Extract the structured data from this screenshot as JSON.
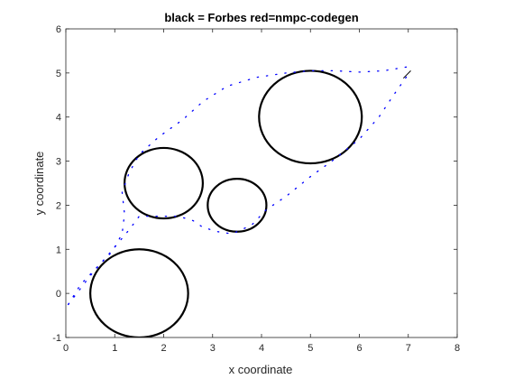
{
  "chart_data": {
    "type": "scatter",
    "title": "black = Forbes red=nmpc-codegen",
    "xlabel": "x coordinate",
    "ylabel": "y coordinate",
    "xlim": [
      0,
      8
    ],
    "ylim": [
      -1,
      6
    ],
    "xticks": [
      0,
      1,
      2,
      3,
      4,
      5,
      6,
      7,
      8
    ],
    "yticks": [
      -1,
      0,
      1,
      2,
      3,
      4,
      5,
      6
    ],
    "grid": false,
    "colors": {
      "axes": "#262626",
      "obstacle": "#000000",
      "dotted_path": "#0000ff",
      "solid_path": "#000000"
    },
    "obstacles": [
      {
        "center": [
          1.5,
          0.0
        ],
        "radius": 1.0
      },
      {
        "center": [
          2.0,
          2.5
        ],
        "radius": 0.8
      },
      {
        "center": [
          3.5,
          2.0
        ],
        "radius": 0.6
      },
      {
        "center": [
          5.0,
          4.0
        ],
        "radius": 1.05
      }
    ],
    "series": [
      {
        "style": "dotted-blue",
        "points": [
          [
            0.05,
            -0.25
          ],
          [
            0.3,
            0.2
          ],
          [
            0.6,
            0.55
          ],
          [
            0.95,
            0.95
          ],
          [
            1.15,
            1.35
          ],
          [
            1.2,
            1.8
          ],
          [
            1.15,
            2.3
          ],
          [
            1.3,
            2.75
          ],
          [
            1.5,
            3.15
          ],
          [
            1.9,
            3.55
          ],
          [
            2.4,
            3.95
          ],
          [
            2.8,
            4.35
          ],
          [
            3.3,
            4.7
          ],
          [
            3.9,
            4.9
          ],
          [
            4.5,
            5.0
          ],
          [
            5.0,
            5.05
          ],
          [
            5.5,
            5.05
          ],
          [
            6.0,
            5.02
          ],
          [
            6.5,
            5.05
          ],
          [
            7.05,
            5.15
          ]
        ]
      },
      {
        "style": "dotted-blue",
        "points": [
          [
            0.05,
            -0.25
          ],
          [
            0.5,
            0.4
          ],
          [
            1.0,
            1.05
          ],
          [
            1.3,
            1.45
          ],
          [
            1.5,
            1.75
          ],
          [
            1.9,
            1.75
          ],
          [
            2.3,
            1.75
          ],
          [
            2.6,
            1.65
          ],
          [
            2.8,
            1.5
          ],
          [
            3.1,
            1.4
          ],
          [
            3.4,
            1.35
          ],
          [
            3.8,
            1.55
          ],
          [
            4.1,
            1.9
          ],
          [
            4.5,
            2.2
          ],
          [
            5.0,
            2.65
          ],
          [
            5.5,
            3.05
          ],
          [
            6.0,
            3.5
          ],
          [
            6.4,
            4.0
          ],
          [
            6.7,
            4.5
          ],
          [
            7.05,
            5.05
          ]
        ]
      },
      {
        "style": "solid-black",
        "points": [
          [
            6.9,
            4.88
          ],
          [
            7.05,
            5.05
          ]
        ]
      }
    ]
  }
}
